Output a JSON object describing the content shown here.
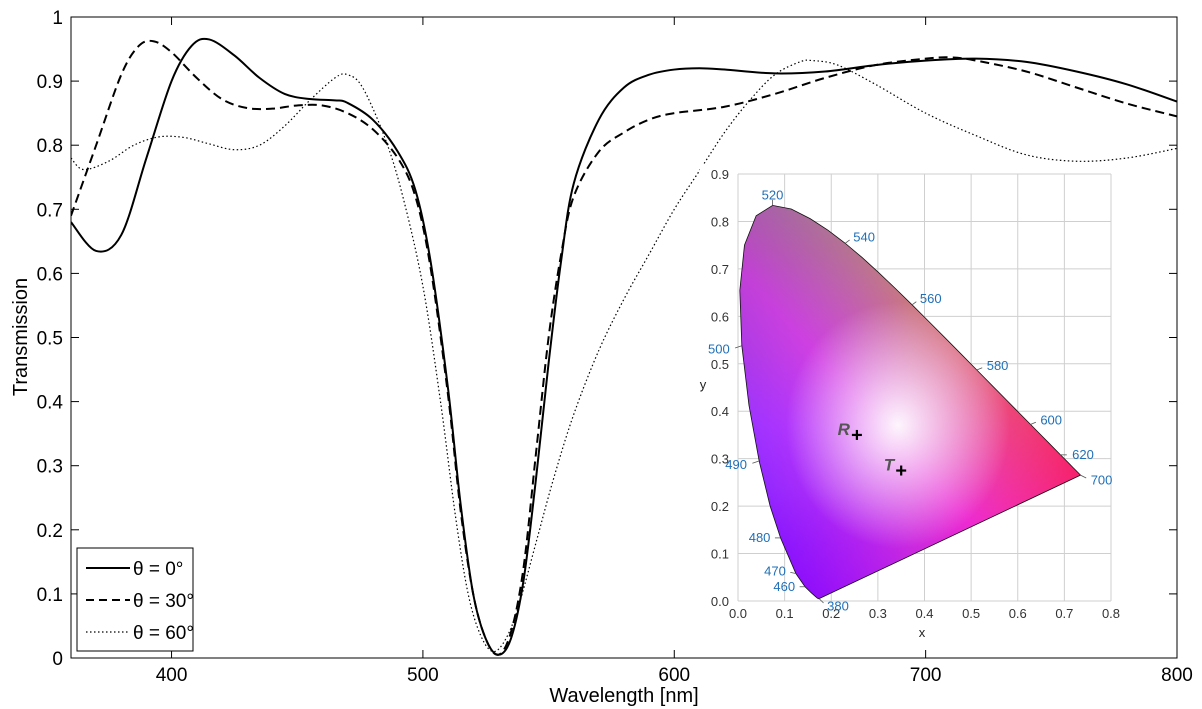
{
  "chart_data": [
    {
      "type": "line",
      "title": "",
      "xlabel": "Wavelength [nm]",
      "ylabel": "Transmission",
      "xlim": [
        360,
        800
      ],
      "ylim": [
        0,
        1
      ],
      "xticks": [
        400,
        500,
        600,
        700,
        800
      ],
      "yticks": [
        0,
        0.1,
        0.2,
        0.3,
        0.4,
        0.5,
        0.6,
        0.7,
        0.8,
        0.9,
        1
      ],
      "grid": false,
      "legend_position": "bottom-left",
      "series": [
        {
          "name": "θ = 0°",
          "line_style": "solid",
          "points": [
            [
              360,
              0.68
            ],
            [
              370,
              0.635
            ],
            [
              380,
              0.66
            ],
            [
              390,
              0.78
            ],
            [
              400,
              0.9
            ],
            [
              408,
              0.955
            ],
            [
              415,
              0.965
            ],
            [
              425,
              0.94
            ],
            [
              435,
              0.905
            ],
            [
              445,
              0.88
            ],
            [
              455,
              0.872
            ],
            [
              465,
              0.87
            ],
            [
              470,
              0.866
            ],
            [
              480,
              0.84
            ],
            [
              490,
              0.79
            ],
            [
              497,
              0.73
            ],
            [
              503,
              0.62
            ],
            [
              510,
              0.42
            ],
            [
              515,
              0.24
            ],
            [
              520,
              0.1
            ],
            [
              525,
              0.03
            ],
            [
              530,
              0.005
            ],
            [
              535,
              0.03
            ],
            [
              540,
              0.12
            ],
            [
              545,
              0.28
            ],
            [
              550,
              0.46
            ],
            [
              555,
              0.62
            ],
            [
              560,
              0.74
            ],
            [
              570,
              0.84
            ],
            [
              580,
              0.89
            ],
            [
              590,
              0.91
            ],
            [
              600,
              0.918
            ],
            [
              610,
              0.92
            ],
            [
              620,
              0.918
            ],
            [
              640,
              0.912
            ],
            [
              660,
              0.915
            ],
            [
              680,
              0.925
            ],
            [
              700,
              0.932
            ],
            [
              720,
              0.935
            ],
            [
              740,
              0.93
            ],
            [
              760,
              0.915
            ],
            [
              780,
              0.895
            ],
            [
              800,
              0.868
            ]
          ]
        },
        {
          "name": "θ = 30°",
          "line_style": "dashed",
          "points": [
            [
              360,
              0.69
            ],
            [
              370,
              0.8
            ],
            [
              380,
              0.91
            ],
            [
              387,
              0.955
            ],
            [
              393,
              0.962
            ],
            [
              400,
              0.945
            ],
            [
              410,
              0.905
            ],
            [
              420,
              0.872
            ],
            [
              430,
              0.858
            ],
            [
              440,
              0.857
            ],
            [
              450,
              0.862
            ],
            [
              460,
              0.862
            ],
            [
              470,
              0.85
            ],
            [
              480,
              0.825
            ],
            [
              490,
              0.78
            ],
            [
              497,
              0.72
            ],
            [
              503,
              0.61
            ],
            [
              510,
              0.41
            ],
            [
              515,
              0.23
            ],
            [
              520,
              0.1
            ],
            [
              525,
              0.03
            ],
            [
              530,
              0.005
            ],
            [
              535,
              0.04
            ],
            [
              540,
              0.14
            ],
            [
              545,
              0.32
            ],
            [
              550,
              0.5
            ],
            [
              555,
              0.63
            ],
            [
              560,
              0.72
            ],
            [
              570,
              0.79
            ],
            [
              580,
              0.82
            ],
            [
              590,
              0.84
            ],
            [
              600,
              0.85
            ],
            [
              620,
              0.86
            ],
            [
              640,
              0.88
            ],
            [
              660,
              0.905
            ],
            [
              680,
              0.925
            ],
            [
              700,
              0.935
            ],
            [
              710,
              0.937
            ],
            [
              720,
              0.932
            ],
            [
              740,
              0.915
            ],
            [
              760,
              0.89
            ],
            [
              780,
              0.865
            ],
            [
              800,
              0.845
            ]
          ]
        },
        {
          "name": "θ = 60°",
          "line_style": "dotted",
          "points": [
            [
              360,
              0.78
            ],
            [
              365,
              0.762
            ],
            [
              375,
              0.775
            ],
            [
              385,
              0.8
            ],
            [
              395,
              0.813
            ],
            [
              405,
              0.812
            ],
            [
              415,
              0.802
            ],
            [
              425,
              0.793
            ],
            [
              435,
              0.8
            ],
            [
              445,
              0.83
            ],
            [
              455,
              0.87
            ],
            [
              465,
              0.905
            ],
            [
              470,
              0.91
            ],
            [
              476,
              0.89
            ],
            [
              485,
              0.81
            ],
            [
              492,
              0.72
            ],
            [
              500,
              0.58
            ],
            [
              507,
              0.4
            ],
            [
              513,
              0.22
            ],
            [
              518,
              0.1
            ],
            [
              523,
              0.035
            ],
            [
              528,
              0.01
            ],
            [
              533,
              0.03
            ],
            [
              538,
              0.08
            ],
            [
              545,
              0.18
            ],
            [
              552,
              0.28
            ],
            [
              560,
              0.38
            ],
            [
              570,
              0.48
            ],
            [
              580,
              0.56
            ],
            [
              590,
              0.63
            ],
            [
              600,
              0.7
            ],
            [
              610,
              0.76
            ],
            [
              620,
              0.82
            ],
            [
              630,
              0.87
            ],
            [
              640,
              0.91
            ],
            [
              650,
              0.93
            ],
            [
              655,
              0.932
            ],
            [
              665,
              0.925
            ],
            [
              680,
              0.895
            ],
            [
              700,
              0.85
            ],
            [
              720,
              0.815
            ],
            [
              740,
              0.785
            ],
            [
              760,
              0.775
            ],
            [
              780,
              0.78
            ],
            [
              800,
              0.795
            ]
          ]
        }
      ]
    },
    {
      "type": "scatter",
      "title": "",
      "xlabel": "x",
      "ylabel": "y",
      "xlim": [
        0,
        0.8
      ],
      "ylim": [
        0,
        0.9
      ],
      "xticks": [
        "0.0",
        "0.1",
        "0.2",
        "0.3",
        "0.4",
        "0.5",
        "0.6",
        "0.7",
        "0.8"
      ],
      "yticks": [
        "0.0",
        "0.1",
        "0.2",
        "0.3",
        "0.4",
        "0.5",
        "0.6",
        "0.7",
        "0.8",
        "0.9"
      ],
      "grid": true,
      "spectral_locus_labels": [
        {
          "label": "380",
          "x": 0.174,
          "y": 0.005
        },
        {
          "label": "460",
          "x": 0.144,
          "y": 0.03
        },
        {
          "label": "470",
          "x": 0.124,
          "y": 0.058
        },
        {
          "label": "480",
          "x": 0.091,
          "y": 0.133
        },
        {
          "label": "490",
          "x": 0.045,
          "y": 0.295
        },
        {
          "label": "500",
          "x": 0.008,
          "y": 0.538
        },
        {
          "label": "520",
          "x": 0.074,
          "y": 0.834
        },
        {
          "label": "540",
          "x": 0.23,
          "y": 0.754
        },
        {
          "label": "560",
          "x": 0.373,
          "y": 0.624
        },
        {
          "label": "580",
          "x": 0.512,
          "y": 0.487
        },
        {
          "label": "600",
          "x": 0.627,
          "y": 0.372
        },
        {
          "label": "620",
          "x": 0.691,
          "y": 0.308
        },
        {
          "label": "700",
          "x": 0.735,
          "y": 0.265
        }
      ],
      "markers": [
        {
          "label": "R",
          "x": 0.255,
          "y": 0.35
        },
        {
          "label": "T",
          "x": 0.35,
          "y": 0.275
        }
      ]
    }
  ]
}
